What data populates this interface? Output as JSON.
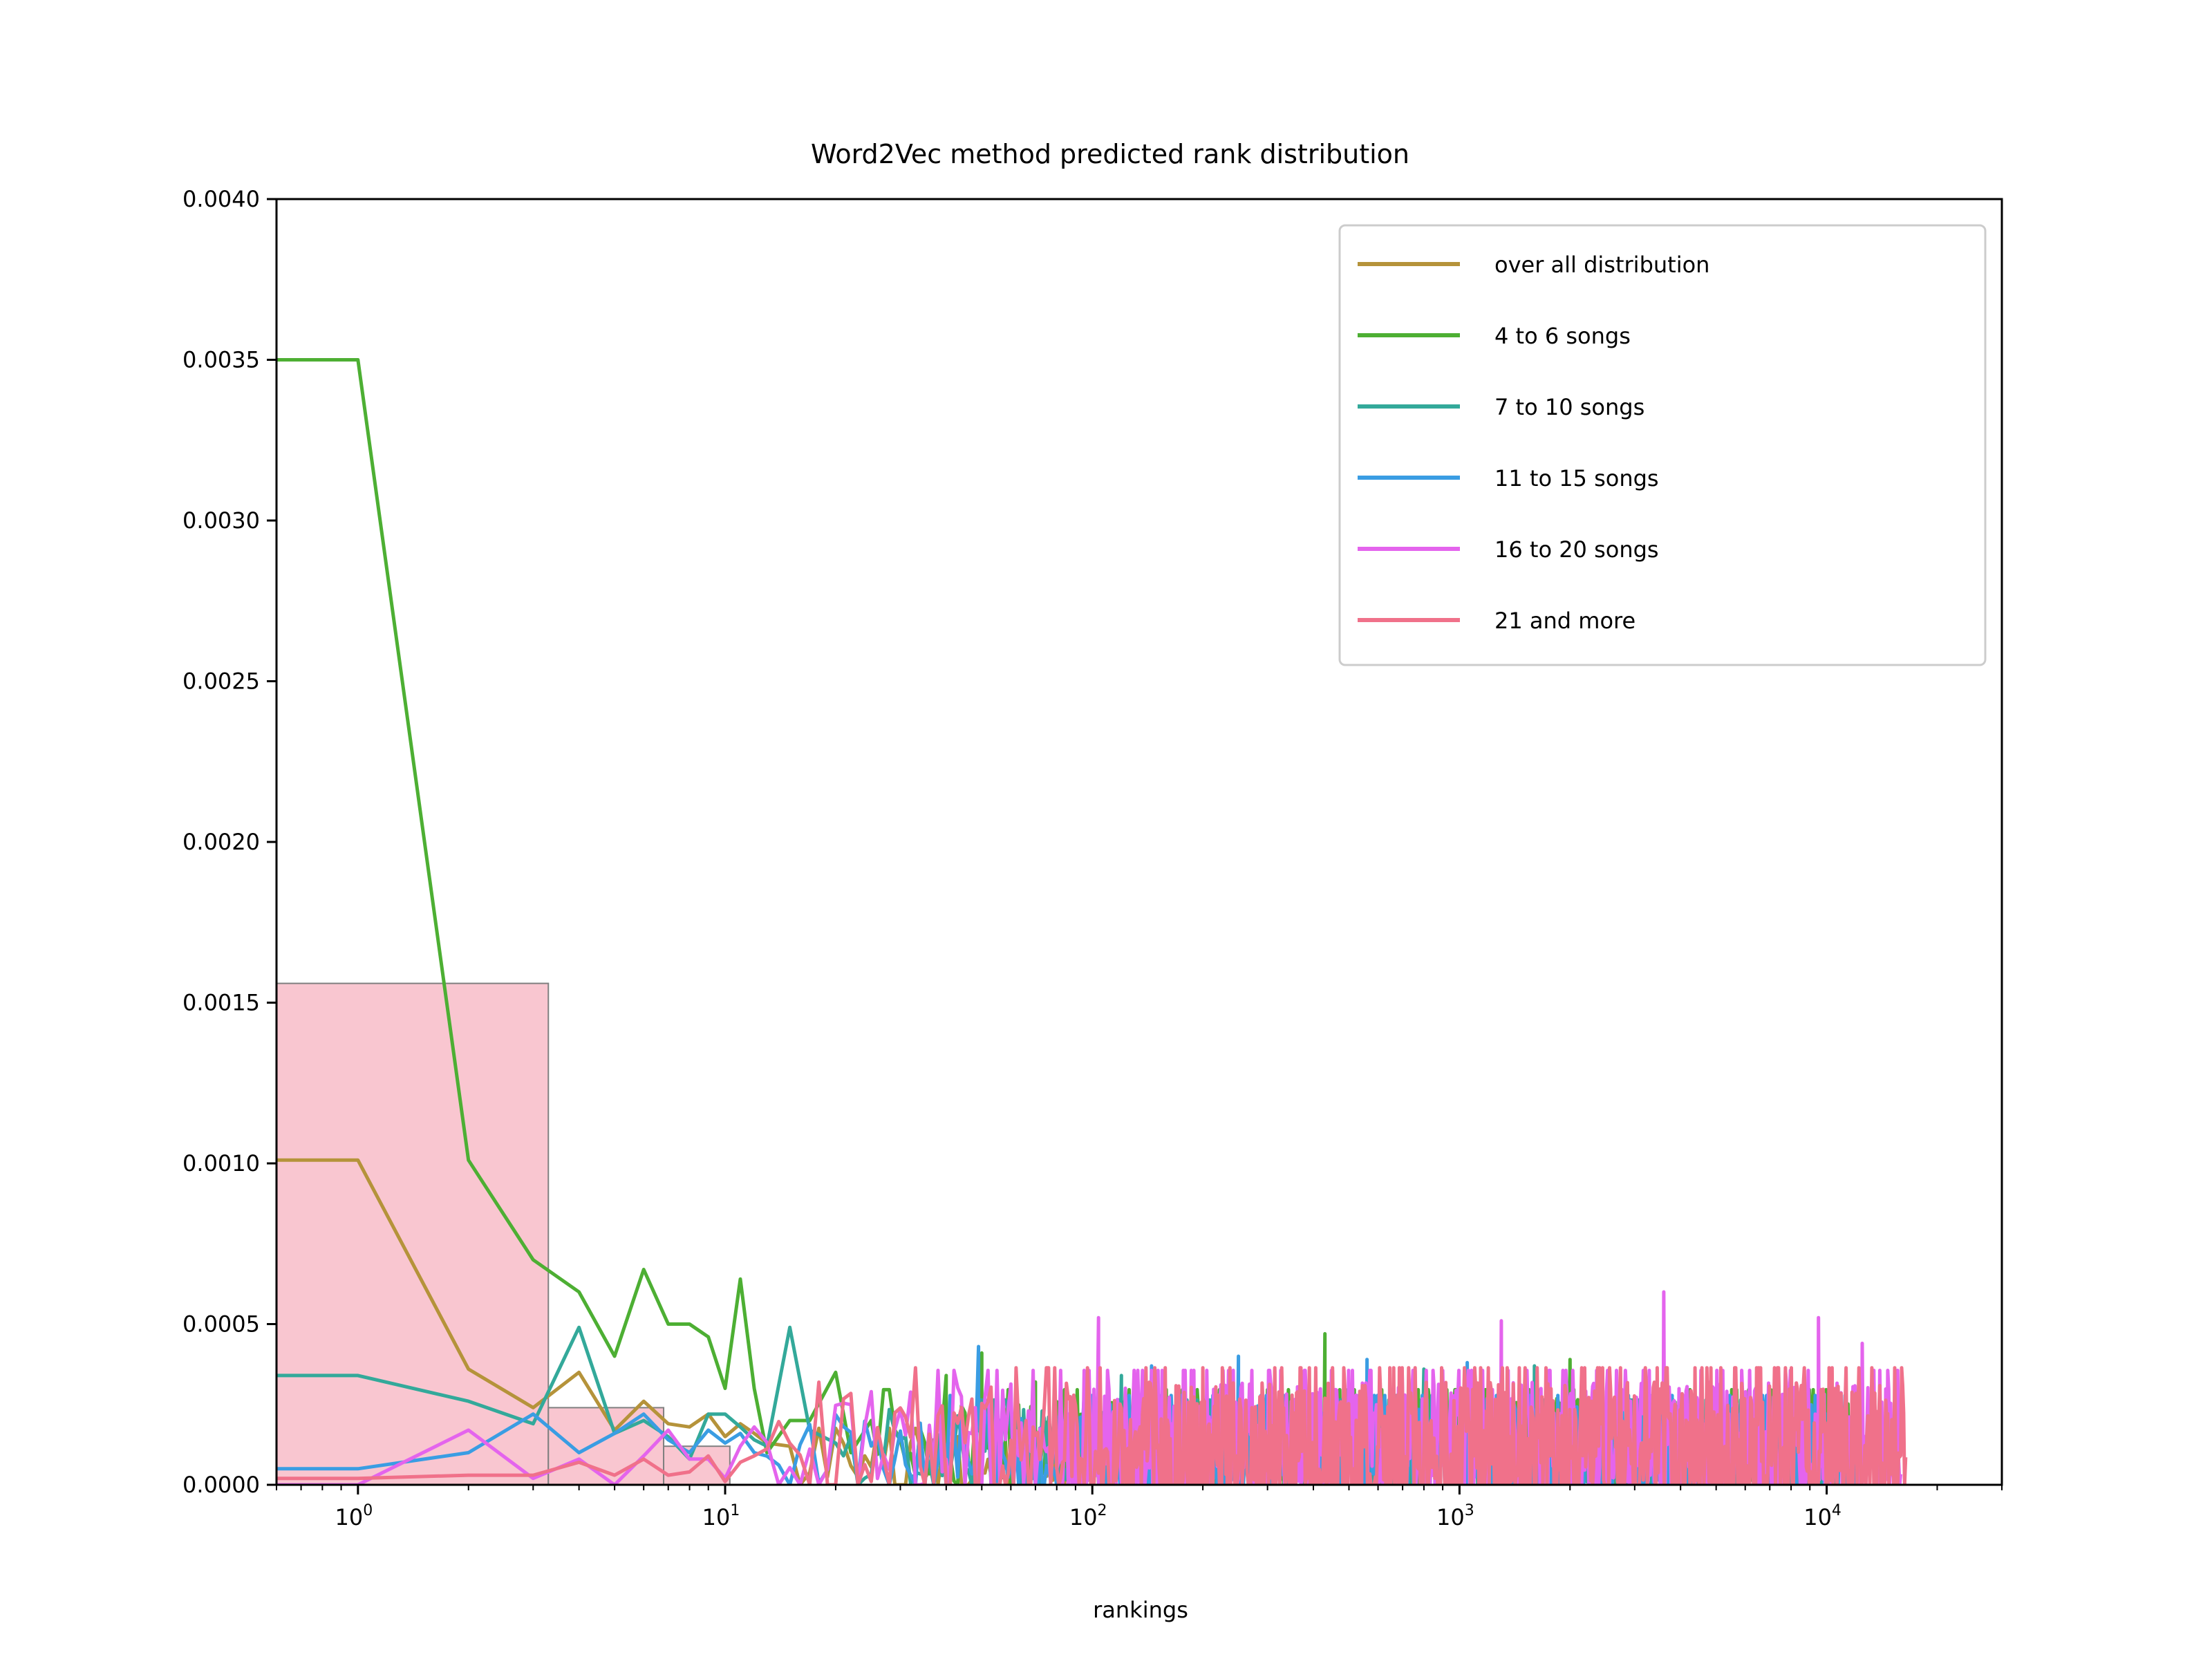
{
  "chart_data": {
    "type": "line",
    "title": "Word2Vec method predicted rank distribution",
    "xlabel": "rankings",
    "ylabel": "",
    "xscale": "log",
    "xlim": [
      0.6,
      30000
    ],
    "ylim": [
      0,
      0.004
    ],
    "grid": false,
    "legend_position": "top-right",
    "yticks": [
      "0.0000",
      "0.0005",
      "0.0010",
      "0.0015",
      "0.0020",
      "0.0025",
      "0.0030",
      "0.0035",
      "0.0040"
    ],
    "xticks": [
      {
        "base": "10",
        "exp": "0",
        "value": 1
      },
      {
        "base": "10",
        "exp": "1",
        "value": 10
      },
      {
        "base": "10",
        "exp": "2",
        "value": 100
      },
      {
        "base": "10",
        "exp": "3",
        "value": 1000
      },
      {
        "base": "10",
        "exp": "4",
        "value": 10000
      }
    ],
    "histogram": {
      "color": "#f9c6d0",
      "edge": "#808080",
      "bins": [
        {
          "x0": 0.6,
          "x1": 3.3,
          "height": 0.00156
        },
        {
          "x0": 3.3,
          "x1": 6.8,
          "height": 0.00024
        },
        {
          "x0": 6.8,
          "x1": 10.3,
          "height": 0.00012
        }
      ]
    },
    "series": [
      {
        "name": "over all distribution",
        "color": "#b5933a",
        "x": [
          0.6,
          1,
          2,
          3,
          4,
          5,
          6,
          7,
          8,
          9,
          10,
          11,
          12,
          13,
          15
        ],
        "y": [
          0.00101,
          0.00101,
          0.00036,
          0.00024,
          0.00035,
          0.00017,
          0.00026,
          0.00019,
          0.00018,
          0.00022,
          0.00015,
          0.00019,
          0.00016,
          0.00013,
          0.00012
        ],
        "noise": {
          "from": 15,
          "to": 300,
          "base": 8e-05,
          "amp": 8e-05
        }
      },
      {
        "name": "4 to 6 songs",
        "color": "#4daf33",
        "x": [
          0.6,
          1,
          2,
          3,
          4,
          5,
          6,
          7,
          8,
          9,
          10,
          11,
          12,
          13,
          15,
          17,
          20,
          22,
          25
        ],
        "y": [
          0.0035,
          0.0035,
          0.00101,
          0.0007,
          0.0006,
          0.0004,
          0.00067,
          0.0005,
          0.0005,
          0.00046,
          0.0003,
          0.00064,
          0.0003,
          0.0001,
          0.0002,
          0.0002,
          0.00035,
          0.0001,
          0.0002
        ],
        "noise": {
          "from": 25,
          "to": 12000,
          "base": 0.00014,
          "amp": 0.00013,
          "spikes": [
            [
              40,
              0.00034
            ],
            [
              50,
              0.00041
            ],
            [
              70,
              0.00032
            ],
            [
              430,
              0.00047
            ],
            [
              2000,
              0.00039
            ]
          ]
        }
      },
      {
        "name": "7 to 10 songs",
        "color": "#33a99a",
        "x": [
          0.6,
          1,
          2,
          3,
          4,
          5,
          6,
          7,
          8,
          9,
          10,
          11,
          12,
          13,
          15,
          17,
          20
        ],
        "y": [
          0.00034,
          0.00034,
          0.00026,
          0.00019,
          0.00049,
          0.00016,
          0.0002,
          0.00015,
          8e-05,
          0.00022,
          0.00022,
          0.00018,
          0.00014,
          0.00012,
          0.00049,
          0.00017,
          0.00013
        ],
        "noise": {
          "from": 20,
          "to": 12000,
          "base": 0.00012,
          "amp": 0.00012,
          "spikes": [
            [
              120,
              0.00034
            ],
            [
              800,
              0.00036
            ],
            [
              1600,
              0.00037
            ]
          ]
        }
      },
      {
        "name": "11 to 15 songs",
        "color": "#3a9de3",
        "x": [
          0.6,
          1,
          2,
          3,
          4,
          5,
          6,
          7,
          8,
          9,
          10,
          11,
          12
        ],
        "y": [
          5e-05,
          5e-05,
          0.0001,
          0.00022,
          0.0001,
          0.00016,
          0.00022,
          0.00014,
          0.0001,
          0.00017,
          0.00013,
          0.00016,
          0.0001
        ],
        "noise": {
          "from": 12,
          "to": 12000,
          "base": 0.00011,
          "amp": 0.00014,
          "spikes": [
            [
              49,
              0.00043
            ],
            [
              145,
              0.00037
            ],
            [
              250,
              0.0004
            ],
            [
              560,
              0.00039
            ],
            [
              1050,
              0.00038
            ]
          ]
        }
      },
      {
        "name": "16 to 20 songs",
        "color": "#e464ed",
        "x": [
          0.6,
          1,
          2,
          3,
          4,
          5,
          6,
          7,
          8,
          9,
          10,
          11,
          12
        ],
        "y": [
          0.0,
          0.0,
          0.00017,
          2e-05,
          8e-05,
          0.0,
          9e-05,
          0.00017,
          8e-05,
          8e-05,
          2e-05,
          0.00012,
          0.00018
        ],
        "noise": {
          "from": 12,
          "to": 16000,
          "base": 0.00014,
          "amp": 0.00018,
          "spikes": [
            [
              104,
              0.00052
            ],
            [
              1300,
              0.00051
            ],
            [
              3600,
              0.0006
            ],
            [
              9500,
              0.00052
            ],
            [
              12500,
              0.00044
            ]
          ]
        }
      },
      {
        "name": "21 and more",
        "color": "#f0718a",
        "x": [
          0.6,
          1,
          2,
          3,
          4,
          5,
          6,
          7,
          8,
          9,
          10,
          11,
          12
        ],
        "y": [
          2e-05,
          2e-05,
          3e-05,
          3e-05,
          7e-05,
          3e-05,
          8e-05,
          3e-05,
          4e-05,
          9e-05,
          1e-05,
          7e-05,
          9e-05
        ],
        "noise": {
          "from": 12,
          "to": 16500,
          "base": 0.0001,
          "amp": 0.00022
        }
      }
    ]
  }
}
